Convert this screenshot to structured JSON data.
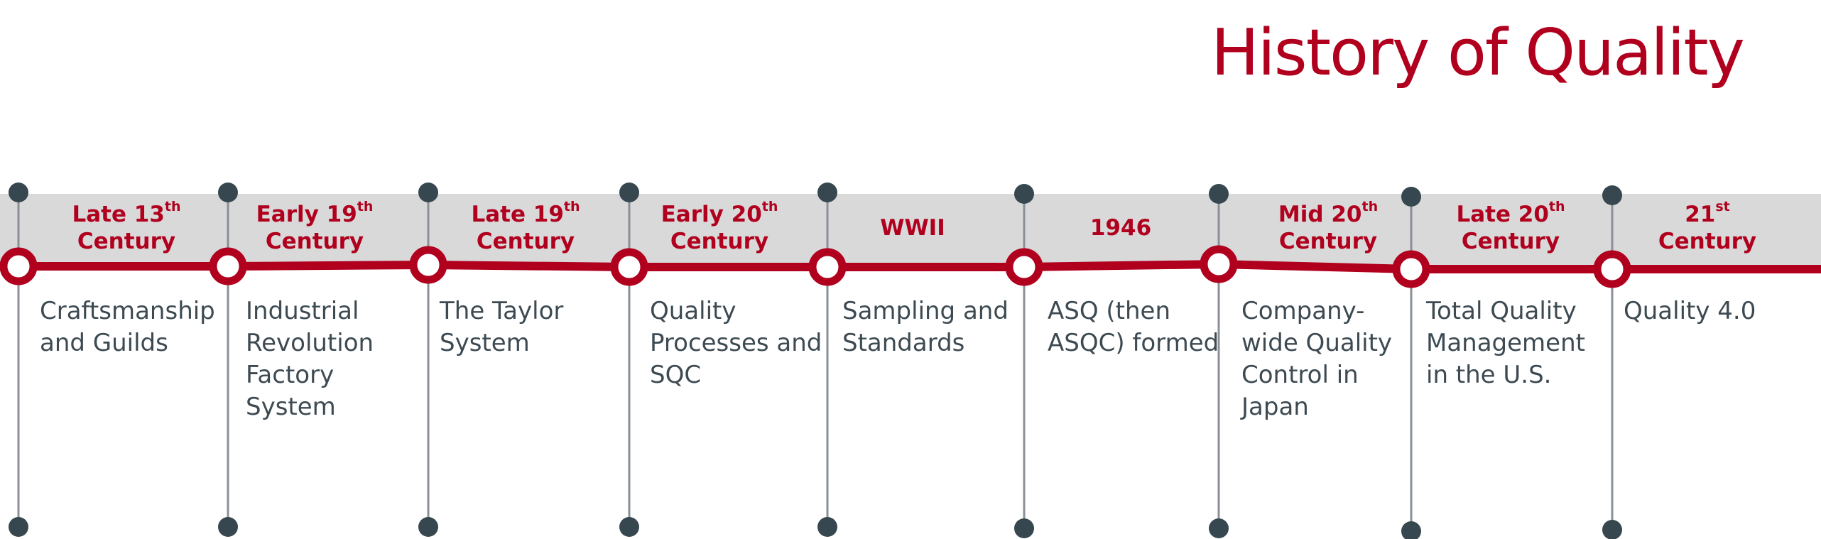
{
  "title": "History of Quality",
  "colors": {
    "accent": "#b0001e",
    "stem": "#8a9096",
    "dot": "#37474f",
    "band": "#d9d9d9",
    "text": "#3d4a52"
  },
  "milestones": [
    {
      "label_main": "Late 13",
      "label_sup": "th",
      "label_line2": "Century",
      "description": "Craftsmanship\nand Guilds"
    },
    {
      "label_main": "Early 19",
      "label_sup": "th",
      "label_line2": "Century",
      "description": "Industrial\nRevolution\nFactory\nSystem"
    },
    {
      "label_main": "Late 19",
      "label_sup": "th",
      "label_line2": "Century",
      "description": "The Taylor\nSystem"
    },
    {
      "label_main": "Early 20",
      "label_sup": "th",
      "label_line2": "Century",
      "description": "Quality\nProcesses and\nSQC"
    },
    {
      "label_main": "WWII",
      "label_sup": "",
      "label_line2": "",
      "description": "Sampling and\nStandards"
    },
    {
      "label_main": "1946",
      "label_sup": "",
      "label_line2": "",
      "description": "ASQ (then\nASQC) formed"
    },
    {
      "label_main": "Mid 20",
      "label_sup": "th",
      "label_line2": "Century",
      "description": "Company-\nwide Quality\nControl in\nJapan"
    },
    {
      "label_main": "Late 20",
      "label_sup": "th",
      "label_line2": "Century",
      "description": "Total Quality\nManagement\nin the U.S."
    },
    {
      "label_main": "21",
      "label_sup": "st",
      "label_line2": "Century",
      "description": "Quality 4.0"
    }
  ]
}
